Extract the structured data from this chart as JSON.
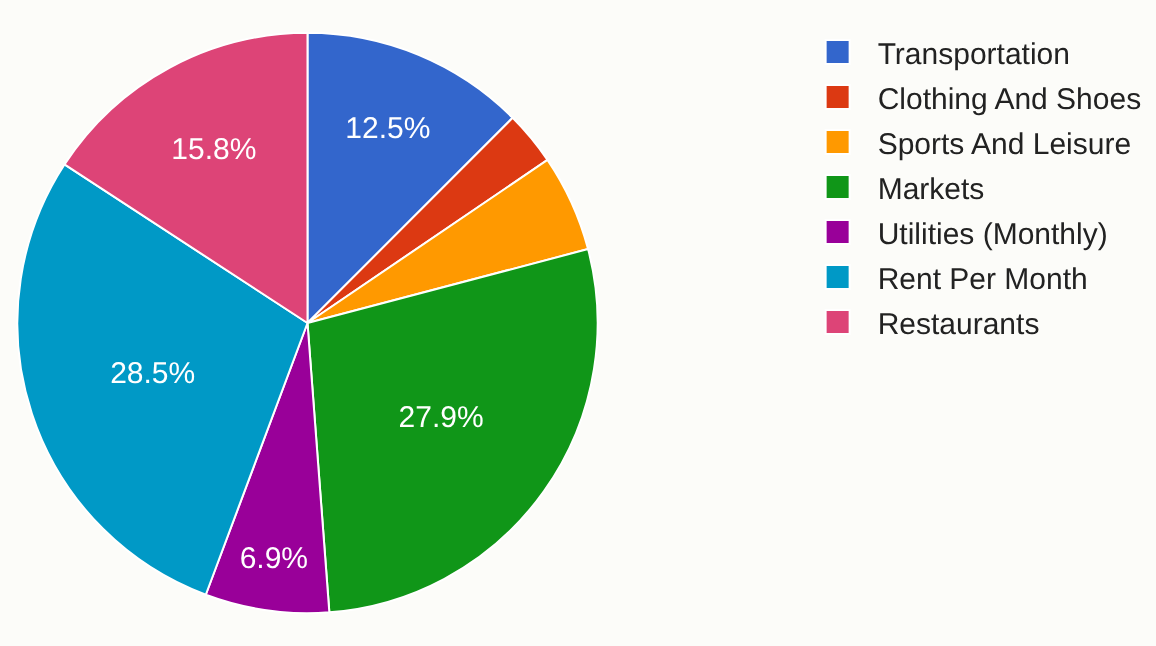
{
  "chart_data": {
    "type": "pie",
    "categories": [
      "Transportation",
      "Clothing And Shoes",
      "Sports And Leisure",
      "Markets",
      "Utilities (Monthly)",
      "Rent Per Month",
      "Restaurants"
    ],
    "values": [
      12.5,
      3.0,
      5.4,
      27.9,
      6.9,
      28.5,
      15.8
    ],
    "value_labels": [
      "12.5%",
      null,
      null,
      "27.9%",
      "6.9%",
      "28.5%",
      "15.8%"
    ],
    "colors": [
      "#3366cc",
      "#dc3912",
      "#ff9900",
      "#109618",
      "#990099",
      "#0099c6",
      "#dd4477"
    ],
    "legend": "top right"
  }
}
